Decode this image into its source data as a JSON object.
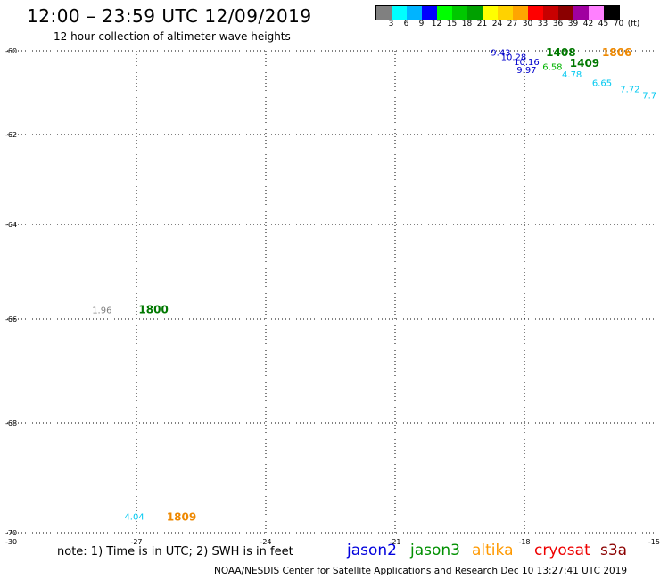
{
  "header": {
    "title": "12:00 – 23:59 UTC 12/09/2019",
    "subtitle": "12 hour collection of altimeter wave heights"
  },
  "scale": {
    "colors": [
      "#808080",
      "#00ffff",
      "#00b4ff",
      "#0000ff",
      "#00ff00",
      "#00c800",
      "#00a000",
      "#ffff00",
      "#ffd200",
      "#ffa500",
      "#ff0000",
      "#c80000",
      "#8b0000",
      "#a000a0",
      "#ff80ff",
      "#000000"
    ],
    "labels": [
      "3",
      "6",
      "9",
      "12",
      "15",
      "18",
      "21",
      "24",
      "27",
      "30",
      "33",
      "36",
      "39",
      "42",
      "45",
      "70",
      "(ft)"
    ]
  },
  "chart_data": {
    "type": "scatter",
    "xlabel": "",
    "ylabel": "",
    "x_range": [
      -30,
      -15
    ],
    "y_range": [
      -70,
      -60
    ],
    "x_ticks": [
      {
        "value": -30,
        "label": "-30"
      },
      {
        "value": -27,
        "label": "-27"
      },
      {
        "value": -24,
        "label": "-24"
      },
      {
        "value": -21,
        "label": "-21"
      },
      {
        "value": -18,
        "label": "-18"
      },
      {
        "value": -15,
        "label": "-15"
      }
    ],
    "y_ticks": [
      {
        "value": -60,
        "label": "-60"
      },
      {
        "value": -62,
        "label": "-62"
      },
      {
        "value": -64,
        "label": "-64"
      },
      {
        "value": -66,
        "label": "-66"
      },
      {
        "value": -68,
        "label": "-68"
      },
      {
        "value": -70,
        "label": "-70"
      }
    ],
    "grid": true,
    "points": [
      {
        "lon": -18.55,
        "lat": -60.03,
        "value": "9.43",
        "color": "#0000cc"
      },
      {
        "lon": -18.25,
        "lat": -60.14,
        "value": "10.28",
        "color": "#0000cc"
      },
      {
        "lon": -17.95,
        "lat": -60.26,
        "value": "10.16",
        "color": "#0000cc"
      },
      {
        "lon": -17.95,
        "lat": -60.45,
        "value": "9.97",
        "color": "#0000cc"
      },
      {
        "lon": -17.35,
        "lat": -60.37,
        "value": "6.58",
        "color": "#00b400"
      },
      {
        "lon": -16.9,
        "lat": -60.55,
        "value": "4.78",
        "color": "#00c8f0"
      },
      {
        "lon": -16.2,
        "lat": -60.75,
        "value": "6.65",
        "color": "#00c8f0"
      },
      {
        "lon": -15.55,
        "lat": -60.9,
        "value": "7.72",
        "color": "#00c8f0"
      },
      {
        "lon": -15.1,
        "lat": -61.05,
        "value": "7.7",
        "color": "#00c8f0"
      },
      {
        "lon": -27.8,
        "lat": -65.8,
        "value": "1.96",
        "color": "#808080"
      },
      {
        "lon": -27.05,
        "lat": -69.7,
        "value": "4.04",
        "color": "#00c8f0"
      }
    ],
    "time_labels": [
      {
        "lon": -17.5,
        "lat": -60.02,
        "label": "1408",
        "color": "#007800"
      },
      {
        "lon": -16.2,
        "lat": -60.02,
        "label": "1806",
        "color": "#ee8800"
      },
      {
        "lon": -16.95,
        "lat": -60.28,
        "label": "1409",
        "color": "#007800"
      },
      {
        "lon": -26.95,
        "lat": -65.78,
        "label": "1800",
        "color": "#007800"
      },
      {
        "lon": -26.3,
        "lat": -69.7,
        "label": "1809",
        "color": "#ee8800"
      }
    ]
  },
  "footer": {
    "note": "note:  1) Time is in UTC; 2) SWH is in feet",
    "satellites": [
      {
        "name": "jason2",
        "color": "#0000dd"
      },
      {
        "name": "jason3",
        "color": "#009000"
      },
      {
        "name": "altika",
        "color": "#ff9900"
      },
      {
        "name": "cryosat",
        "color": "#ee0000"
      },
      {
        "name": "s3a",
        "color": "#8b0000"
      }
    ],
    "credit": "NOAA/NESDIS Center for Satellite Applications and Research       Dec 10 13:27:41 UTC 2019"
  }
}
